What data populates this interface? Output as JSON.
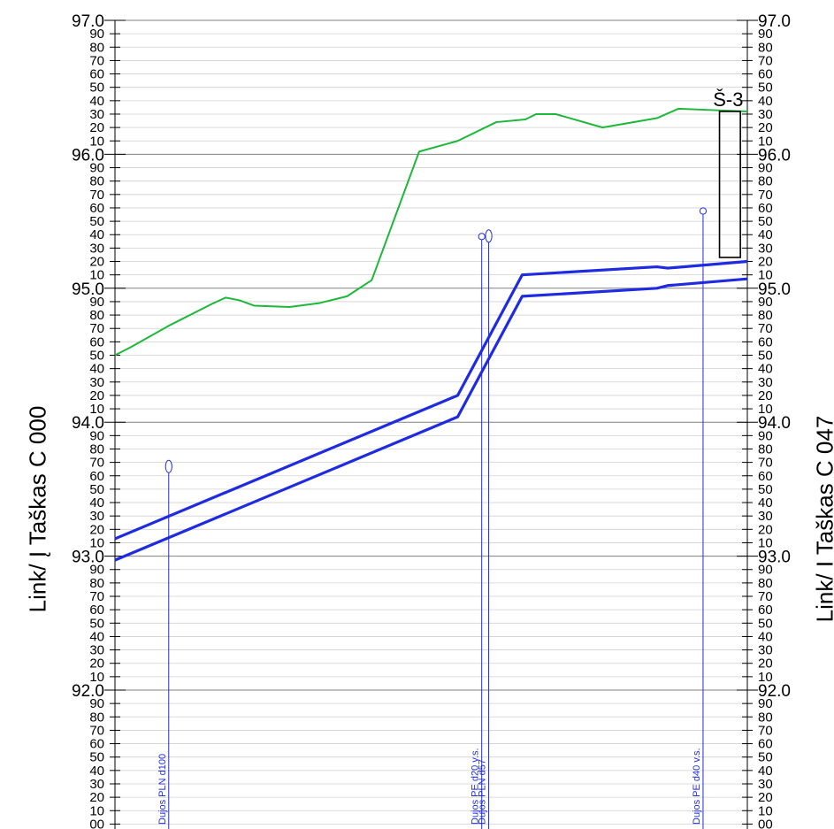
{
  "left_title": "Link/ Į Taškas C 000",
  "right_title": "Link/ I Taškas C 047",
  "well_label": "Š-3",
  "utilities": [
    {
      "label": "Dujos PLN d100",
      "x": 0.085,
      "top": 93.63,
      "marker": "ellipse"
    },
    {
      "label": "Dujos PE d20 v.s.",
      "x": 0.58,
      "top": 95.36,
      "marker": "circle"
    },
    {
      "label": "Dujos PLN d57",
      "x": 0.591,
      "top": 95.35,
      "marker": "ellipse"
    },
    {
      "label": "Dujos PE d40 v.s.",
      "x": 0.93,
      "top": 95.55,
      "marker": "circle"
    }
  ],
  "colors": {
    "ground": "#1db83a",
    "pipe": "#1f2be0",
    "utility": "#1f2be0",
    "grid": "#d0d0d0",
    "grid_major": "#808080"
  },
  "chart_data": {
    "type": "line",
    "ylim": [
      91.97,
      97.02
    ],
    "xlim": [
      0,
      1
    ],
    "y_major_ticks": [
      "92.0",
      "93.0",
      "94.0",
      "95.0",
      "96.0",
      "97.0"
    ],
    "y_minor_tick_labels": [
      "00",
      "10",
      "20",
      "30",
      "40",
      "50",
      "60",
      "70",
      "80",
      "90"
    ],
    "grid": true,
    "series": [
      {
        "role": "ground",
        "x": [
          0,
          0.025,
          0.085,
          0.152,
          0.175,
          0.197,
          0.22,
          0.276,
          0.324,
          0.367,
          0.406,
          0.481,
          0.542,
          0.603,
          0.649,
          0.666,
          0.697,
          0.771,
          0.857,
          0.891,
          0.945,
          1.0
        ],
        "y": [
          94.5,
          94.56,
          94.72,
          94.88,
          94.93,
          94.91,
          94.87,
          94.86,
          94.89,
          94.94,
          95.06,
          96.02,
          96.1,
          96.24,
          96.26,
          96.3,
          96.3,
          96.2,
          96.27,
          96.34,
          96.33,
          96.32
        ]
      },
      {
        "role": "pipe_top",
        "x": [
          0,
          0.542,
          0.644,
          0.857,
          0.874,
          1.0
        ],
        "y": [
          93.13,
          94.2,
          95.1,
          95.16,
          95.15,
          95.2
        ]
      },
      {
        "role": "pipe_bottom",
        "x": [
          0,
          0.542,
          0.644,
          0.857,
          0.874,
          1.0
        ],
        "y": [
          92.97,
          94.04,
          94.94,
          95.0,
          95.02,
          95.07
        ]
      },
      {
        "role": "well",
        "x": [
          0.956,
          0.989
        ],
        "y": [
          95.23,
          96.32
        ]
      }
    ]
  }
}
